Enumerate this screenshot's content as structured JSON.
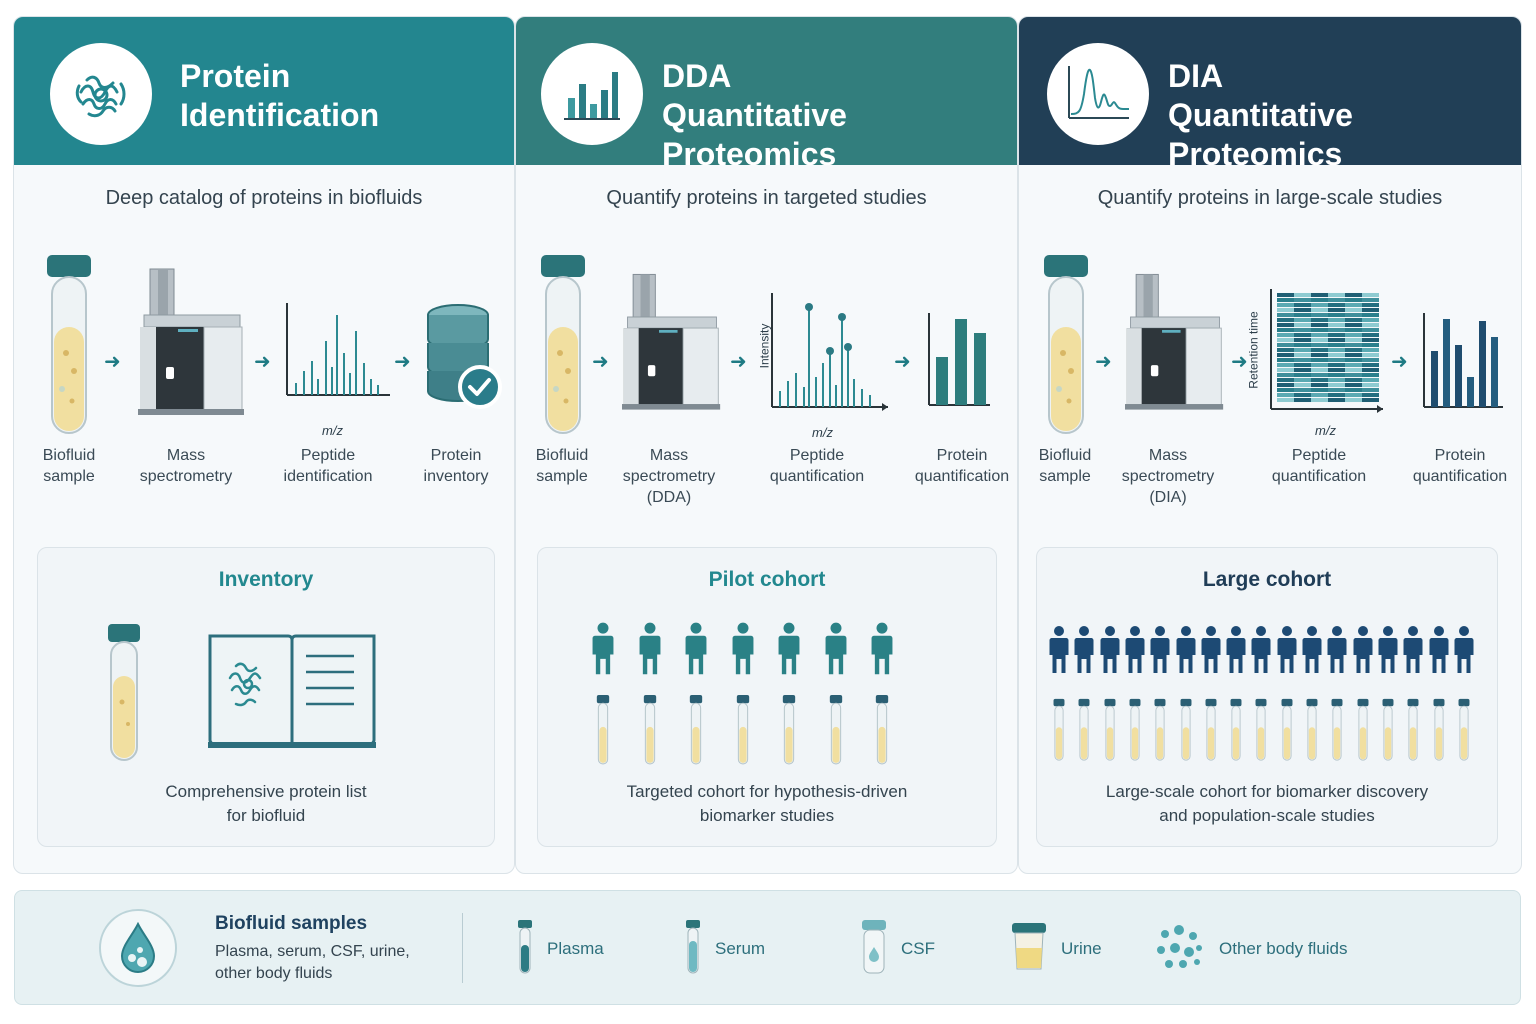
{
  "panels": [
    {
      "id": "protein-identification",
      "title_line1": "Protein",
      "title_line2": "Identification",
      "subtitle": "Deep catalog of proteins in biofluids",
      "steps": [
        {
          "line1": "Biofluid",
          "line2": "sample",
          "line3": ""
        },
        {
          "line1": "Mass",
          "line2": "spectrometry",
          "line3": ""
        },
        {
          "line1": "Peptide",
          "line2": "identification",
          "line3": ""
        },
        {
          "line1": "Protein",
          "line2": "inventory",
          "line3": ""
        }
      ],
      "axis_x_label": "m/z",
      "cohort_title": "Inventory",
      "cohort_desc_line1": "Comprehensive protein list",
      "cohort_desc_line2": "for biofluid"
    },
    {
      "id": "dda-quantitative",
      "title_line1": "DDA",
      "title_line2": "Quantitative Proteomics",
      "subtitle": "Quantify proteins in targeted studies",
      "steps": [
        {
          "line1": "Biofluid",
          "line2": "sample",
          "line3": ""
        },
        {
          "line1": "Mass",
          "line2": "spectrometry",
          "line3": "(DDA)"
        },
        {
          "line1": "Peptide",
          "line2": "quantification",
          "line3": ""
        },
        {
          "line1": "Protein",
          "line2": "quantification",
          "line3": ""
        }
      ],
      "axis_x_label": "m/z",
      "axis_y_label": "Intensity",
      "cohort_title": "Pilot cohort",
      "cohort_desc_line1": "Targeted cohort for hypothesis-driven",
      "cohort_desc_line2": "biomarker studies",
      "cohort_size": 7
    },
    {
      "id": "dia-quantitative",
      "title_line1": "DIA",
      "title_line2": "Quantitative Proteomics",
      "subtitle": "Quantify proteins in large-scale studies",
      "steps": [
        {
          "line1": "Biofluid",
          "line2": "sample",
          "line3": ""
        },
        {
          "line1": "Mass",
          "line2": "spectrometry",
          "line3": "(DIA)"
        },
        {
          "line1": "Peptide",
          "line2": "quantification",
          "line3": ""
        },
        {
          "line1": "Protein",
          "line2": "quantification",
          "line3": ""
        }
      ],
      "axis_x_label": "m/z",
      "axis_y_label": "Retention time",
      "cohort_title": "Large cohort",
      "cohort_desc_line1": "Large-scale cohort for biomarker discovery",
      "cohort_desc_line2": "and population-scale studies",
      "cohort_size": 17
    }
  ],
  "footer": {
    "title": "Biofluid samples",
    "desc_line1": "Plasma, serum, CSF, urine,",
    "desc_line2": "other body fluids",
    "fluids": [
      {
        "label": "Plasma",
        "icon": "plasma-tube-icon"
      },
      {
        "label": "Serum",
        "icon": "serum-tube-icon"
      },
      {
        "label": "CSF",
        "icon": "csf-vial-icon"
      },
      {
        "label": "Urine",
        "icon": "urine-cup-icon"
      },
      {
        "label": "Other body fluids",
        "icon": "droplets-icon"
      }
    ]
  },
  "colors": {
    "teal": "#23868f",
    "teal_dark": "#327e7d",
    "navy": "#213f56",
    "person_teal": "#2a8186",
    "person_navy": "#1d4a74",
    "fluid_yellow": "#f3e2a6"
  }
}
